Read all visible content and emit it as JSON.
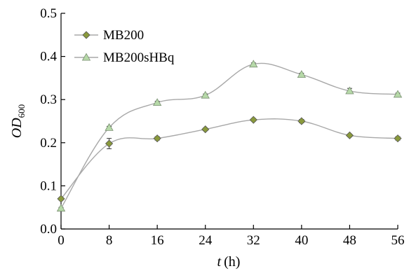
{
  "chart_data": {
    "type": "line",
    "title": "",
    "xlabel": "t (h)",
    "xlabel_var": "t",
    "xlabel_unit": "(h)",
    "ylabel": "OD600",
    "ylabel_main": "OD",
    "ylabel_sub": "600",
    "x": [
      0,
      8,
      16,
      24,
      32,
      40,
      48,
      56
    ],
    "xlim": [
      0,
      56
    ],
    "ylim": [
      0,
      0.5
    ],
    "xticks": [
      "0",
      "8",
      "16",
      "24",
      "32",
      "40",
      "48",
      "56"
    ],
    "yticks": [
      "0.0",
      "0.1",
      "0.2",
      "0.3",
      "0.4",
      "0.5"
    ],
    "grid": false,
    "legend_position": "top-left",
    "line_style": "smooth",
    "series": [
      {
        "name": "MB200",
        "marker": "diamond",
        "marker_color": "#8a9a3c",
        "line_color": "#a8a8a8",
        "values": [
          0.07,
          0.198,
          0.21,
          0.231,
          0.253,
          0.25,
          0.217,
          0.21
        ],
        "errors": [
          0.003,
          0.012,
          0.004,
          0.003,
          0.003,
          0.004,
          0.003,
          0.004
        ]
      },
      {
        "name": "MB200sHBq",
        "marker": "triangle",
        "marker_color": "#b6d9a8",
        "line_color": "#a8a8a8",
        "values": [
          0.048,
          0.235,
          0.293,
          0.31,
          0.382,
          0.358,
          0.32,
          0.312
        ],
        "errors": [
          0.002,
          0.003,
          0.003,
          0.003,
          0.003,
          0.003,
          0.006,
          0.003
        ]
      }
    ]
  }
}
